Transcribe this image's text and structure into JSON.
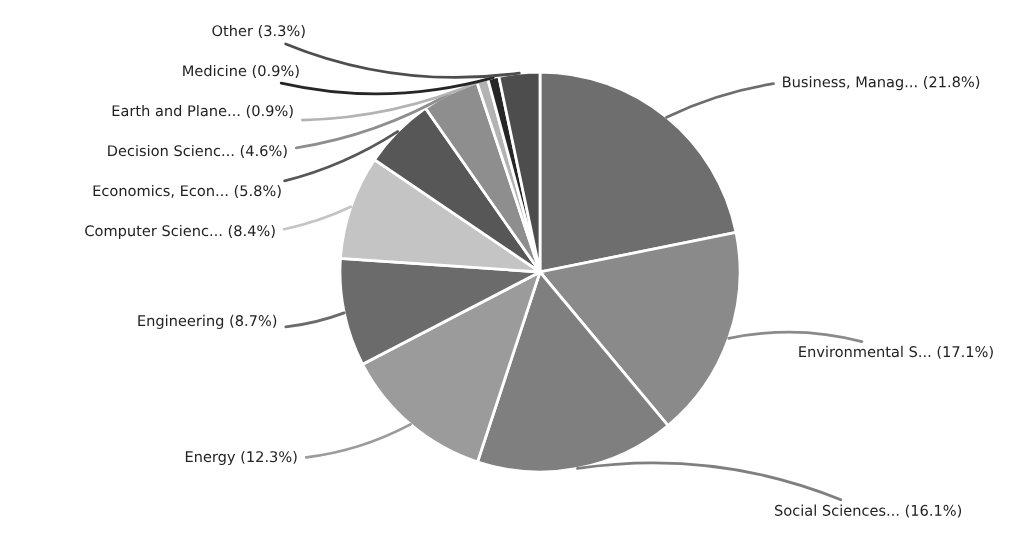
{
  "chart_data": {
    "type": "pie",
    "categories": [
      "Business, Manag...",
      "Environmental S...",
      "Social Sciences...",
      "Energy",
      "Engineering",
      "Computer Scienc...",
      "Economics, Econ...",
      "Decision Scienc...",
      "Earth and Plane...",
      "Medicine",
      "Other"
    ],
    "values": [
      21.8,
      17.1,
      16.1,
      12.3,
      8.7,
      8.4,
      5.8,
      4.6,
      0.9,
      0.9,
      3.3
    ],
    "value_labels": [
      "(21.8%)",
      "(17.1%)",
      "(16.1%)",
      "(12.3%)",
      "(8.7%)",
      "(8.4%)",
      "(5.8%)",
      "(4.6%)",
      "(0.9%)",
      "(0.9%)",
      "(3.3%)"
    ],
    "colors": [
      "#6e6e6e",
      "#8a8a8a",
      "#7f7f7f",
      "#9b9b9b",
      "#6b6b6b",
      "#c4c4c4",
      "#575757",
      "#8e8e8e",
      "#b3b3b3",
      "#262626",
      "#4d4d4d"
    ],
    "legend": false
  }
}
